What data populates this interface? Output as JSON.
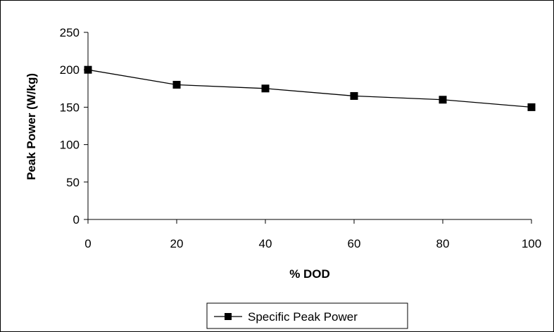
{
  "chart_data": {
    "type": "line",
    "xlabel": "% DOD",
    "ylabel": "Peak Power (W/kg)",
    "xlim": [
      0,
      100
    ],
    "ylim": [
      0,
      250
    ],
    "xticks": [
      "0",
      "20",
      "40",
      "60",
      "80",
      "100"
    ],
    "yticks": [
      "0",
      "50",
      "100",
      "150",
      "200",
      "250"
    ],
    "grid": false,
    "legend_position": "bottom-center",
    "series": [
      {
        "name": "Specific Peak Power",
        "color": "#000000",
        "marker": "square",
        "x": [
          0,
          20,
          40,
          60,
          80,
          100
        ],
        "y": [
          200,
          180,
          175,
          165,
          160,
          150
        ]
      }
    ]
  }
}
